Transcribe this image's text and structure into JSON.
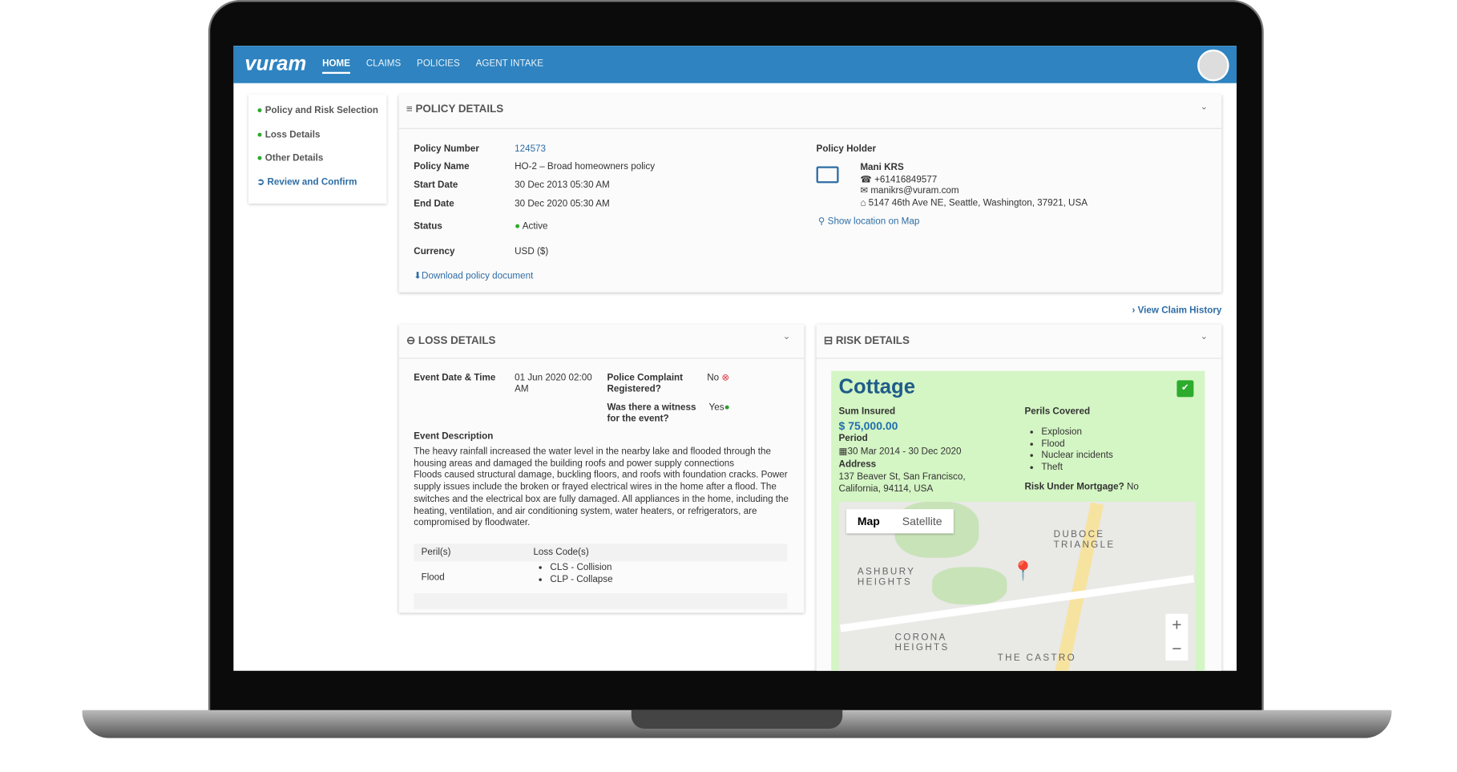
{
  "brand": "vuram",
  "nav": [
    "HOME",
    "CLAIMS",
    "POLICIES",
    "AGENT INTAKE"
  ],
  "steps": [
    "Policy and Risk Selection",
    "Loss Details",
    "Other Details",
    "Review and Confirm"
  ],
  "policy": {
    "title": "POLICY DETAILS",
    "fields": [
      {
        "label": "Policy Number",
        "value": "124573"
      },
      {
        "label": "Policy Name",
        "value": "HO-2 – Broad homeowners policy"
      },
      {
        "label": "Start Date",
        "value": "30 Dec 2013 05:30 AM"
      },
      {
        "label": "End Date",
        "value": "30 Dec 2020 05:30 AM"
      },
      {
        "label": "Status",
        "value": "Active"
      },
      {
        "label": "Currency",
        "value": "USD ($)"
      }
    ],
    "download": "Download policy document",
    "holder": {
      "label": "Policy Holder",
      "name": "Mani KRS",
      "phone": "+61416849577",
      "email": "manikrs@vuram.com",
      "address": "5147 46th Ave NE, Seattle, Washington, 37921, USA",
      "map_link": "Show location on Map"
    }
  },
  "view_history": "View Claim History",
  "loss": {
    "title": "LOSS DETAILS",
    "event_label": "Event Date & Time",
    "event_value": "01 Jun 2020 02:00 AM",
    "police_label": "Police Complaint Registered?",
    "police_value": "No",
    "witness_label": "Was there a witness for the event?",
    "witness_value": "Yes",
    "desc_label": "Event Description",
    "desc": [
      "The heavy rainfall increased the water level in the nearby lake and flooded through the housing areas and damaged the building roofs and power supply connections",
      "Floods caused structural damage, buckling floors, and roofs with foundation cracks. Power supply issues include the broken or frayed electrical wires in the home after a flood. The switches and the electrical box are fully damaged. All appliances in the home, including the heating, ventilation, and air conditioning system, water heaters, or refrigerators, are compromised by floodwater."
    ],
    "table": {
      "headers": [
        "Peril(s)",
        "Loss Code(s)"
      ],
      "peril": "Flood",
      "codes": [
        "CLS - Collision",
        "CLP - Collapse"
      ]
    }
  },
  "risk": {
    "title": "RISK DETAILS",
    "name": "Cottage",
    "sum_label": "Sum Insured",
    "sum": "$ 75,000.00",
    "period_label": "Period",
    "period": "30 Mar 2014 - 30 Dec 2020",
    "address_label": "Address",
    "address": "137 Beaver St, San Francisco, California, 94114, USA",
    "perils_label": "Perils Covered",
    "perils": [
      "Explosion",
      "Flood",
      "Nuclear incidents",
      "Theft"
    ],
    "mortgage_label": "Risk Under Mortgage?",
    "mortgage_value": "No",
    "map": {
      "tabs": [
        "Map",
        "Satellite"
      ],
      "labels": [
        "DUBOCE TRIANGLE",
        "ASHBURY HEIGHTS",
        "CORONA HEIGHTS",
        "THE CASTRO"
      ]
    }
  }
}
